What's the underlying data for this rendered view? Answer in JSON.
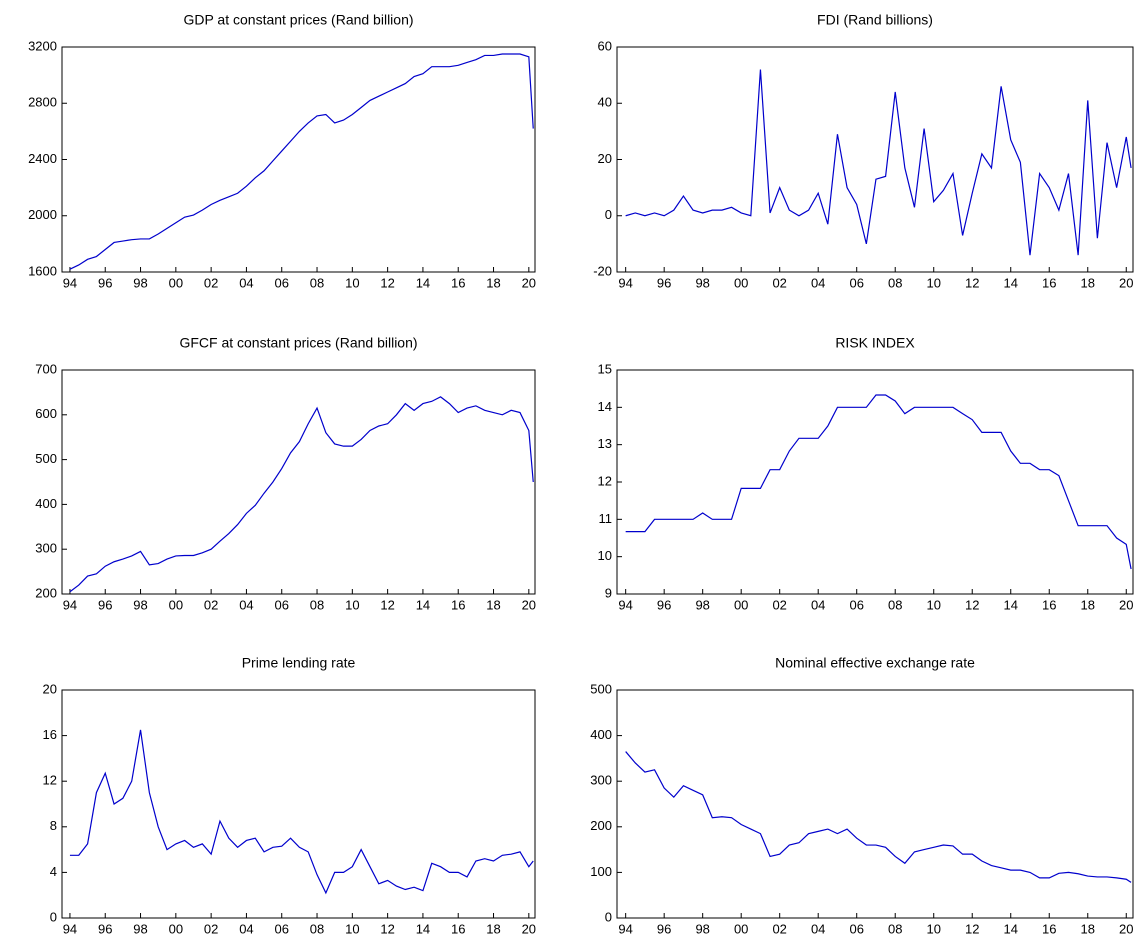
{
  "chart_data": [
    {
      "type": "line",
      "title": "GDP at constant prices (Rand billion)",
      "x": [
        1994,
        1994.5,
        1995,
        1995.5,
        1996,
        1996.5,
        1997,
        1997.5,
        1998,
        1998.5,
        1999,
        1999.5,
        2000,
        2000.5,
        2001,
        2001.5,
        2002,
        2002.5,
        2003,
        2003.5,
        2004,
        2004.5,
        2005,
        2005.5,
        2006,
        2006.5,
        2007,
        2007.5,
        2008,
        2008.5,
        2009,
        2009.5,
        2010,
        2010.5,
        2011,
        2011.5,
        2012,
        2012.5,
        2013,
        2013.5,
        2014,
        2014.5,
        2015,
        2015.5,
        2016,
        2016.5,
        2017,
        2017.5,
        2018,
        2018.5,
        2019,
        2019.5,
        2020,
        2020.25
      ],
      "values": [
        1620,
        1650,
        1690,
        1710,
        1760,
        1810,
        1820,
        1830,
        1835,
        1835,
        1870,
        1910,
        1950,
        1990,
        2005,
        2040,
        2080,
        2110,
        2135,
        2160,
        2210,
        2270,
        2320,
        2390,
        2460,
        2530,
        2600,
        2660,
        2710,
        2720,
        2660,
        2680,
        2720,
        2770,
        2820,
        2850,
        2880,
        2910,
        2940,
        2990,
        3010,
        3060,
        3060,
        3060,
        3070,
        3090,
        3110,
        3140,
        3140,
        3150,
        3150,
        3150,
        3130,
        2620
      ],
      "color": "#0000cc",
      "xlim": [
        1993.55,
        2020.35
      ],
      "ylim": [
        1600,
        3200
      ],
      "yticks": [
        1600,
        2000,
        2400,
        2800,
        3200
      ],
      "xticks": [
        {
          "value": 1994,
          "label": "94"
        },
        {
          "value": 1996,
          "label": "96"
        },
        {
          "value": 1998,
          "label": "98"
        },
        {
          "value": 2000,
          "label": "00"
        },
        {
          "value": 2002,
          "label": "02"
        },
        {
          "value": 2004,
          "label": "04"
        },
        {
          "value": 2006,
          "label": "06"
        },
        {
          "value": 2008,
          "label": "08"
        },
        {
          "value": 2010,
          "label": "10"
        },
        {
          "value": 2012,
          "label": "12"
        },
        {
          "value": 2014,
          "label": "14"
        },
        {
          "value": 2016,
          "label": "16"
        },
        {
          "value": 2018,
          "label": "18"
        },
        {
          "value": 2020,
          "label": "20"
        }
      ]
    },
    {
      "type": "line",
      "title": "FDI (Rand billions)",
      "x": [
        1994,
        1994.5,
        1995,
        1995.5,
        1996,
        1996.5,
        1997,
        1997.5,
        1998,
        1998.5,
        1999,
        1999.5,
        2000,
        2000.5,
        2001,
        2001.5,
        2002,
        2002.5,
        2003,
        2003.5,
        2004,
        2004.5,
        2005,
        2005.5,
        2006,
        2006.5,
        2007,
        2007.5,
        2008,
        2008.5,
        2009,
        2009.5,
        2010,
        2010.5,
        2011,
        2011.5,
        2012,
        2012.5,
        2013,
        2013.5,
        2014,
        2014.5,
        2015,
        2015.5,
        2016,
        2016.5,
        2017,
        2017.5,
        2018,
        2018.5,
        2019,
        2019.5,
        2020,
        2020.25
      ],
      "values": [
        0,
        1,
        0,
        1,
        0,
        2,
        7,
        2,
        1,
        2,
        2,
        3,
        1,
        0,
        52,
        1,
        10,
        2,
        0,
        2,
        8,
        -3,
        29,
        10,
        4,
        -10,
        13,
        14,
        44,
        17,
        3,
        31,
        5,
        9,
        15,
        -7,
        8,
        22,
        17,
        46,
        27,
        19,
        -14,
        15,
        10,
        2,
        15,
        -14,
        41,
        -8,
        26,
        10,
        28,
        17
      ],
      "color": "#0000cc",
      "xlim": [
        1993.55,
        2020.35
      ],
      "ylim": [
        -20,
        60
      ],
      "yticks": [
        -20,
        0,
        20,
        40,
        60
      ],
      "xticks": [
        {
          "value": 1994,
          "label": "94"
        },
        {
          "value": 1996,
          "label": "96"
        },
        {
          "value": 1998,
          "label": "98"
        },
        {
          "value": 2000,
          "label": "00"
        },
        {
          "value": 2002,
          "label": "02"
        },
        {
          "value": 2004,
          "label": "04"
        },
        {
          "value": 2006,
          "label": "06"
        },
        {
          "value": 2008,
          "label": "08"
        },
        {
          "value": 2010,
          "label": "10"
        },
        {
          "value": 2012,
          "label": "12"
        },
        {
          "value": 2014,
          "label": "14"
        },
        {
          "value": 2016,
          "label": "16"
        },
        {
          "value": 2018,
          "label": "18"
        },
        {
          "value": 2020,
          "label": "20"
        }
      ]
    },
    {
      "type": "line",
      "title": "GFCF at constant prices (Rand billion)",
      "x": [
        1994,
        1994.5,
        1995,
        1995.5,
        1996,
        1996.5,
        1997,
        1997.5,
        1998,
        1998.5,
        1999,
        1999.5,
        2000,
        2000.5,
        2001,
        2001.5,
        2002,
        2002.5,
        2003,
        2003.5,
        2004,
        2004.5,
        2005,
        2005.5,
        2006,
        2006.5,
        2007,
        2007.5,
        2008,
        2008.5,
        2009,
        2009.5,
        2010,
        2010.5,
        2011,
        2011.5,
        2012,
        2012.5,
        2013,
        2013.5,
        2014,
        2014.5,
        2015,
        2015.5,
        2016,
        2016.5,
        2017,
        2017.5,
        2018,
        2018.5,
        2019,
        2019.5,
        2020,
        2020.25
      ],
      "values": [
        205,
        220,
        240,
        245,
        262,
        272,
        278,
        285,
        295,
        265,
        268,
        278,
        285,
        286,
        286,
        292,
        300,
        318,
        335,
        355,
        380,
        398,
        425,
        450,
        480,
        515,
        540,
        580,
        615,
        560,
        535,
        530,
        530,
        545,
        565,
        575,
        580,
        600,
        625,
        610,
        625,
        630,
        640,
        625,
        605,
        615,
        620,
        610,
        605,
        600,
        610,
        605,
        565,
        450
      ],
      "color": "#0000cc",
      "xlim": [
        1993.55,
        2020.35
      ],
      "ylim": [
        200,
        700
      ],
      "yticks": [
        200,
        300,
        400,
        500,
        600,
        700
      ],
      "xticks": [
        {
          "value": 1994,
          "label": "94"
        },
        {
          "value": 1996,
          "label": "96"
        },
        {
          "value": 1998,
          "label": "98"
        },
        {
          "value": 2000,
          "label": "00"
        },
        {
          "value": 2002,
          "label": "02"
        },
        {
          "value": 2004,
          "label": "04"
        },
        {
          "value": 2006,
          "label": "06"
        },
        {
          "value": 2008,
          "label": "08"
        },
        {
          "value": 2010,
          "label": "10"
        },
        {
          "value": 2012,
          "label": "12"
        },
        {
          "value": 2014,
          "label": "14"
        },
        {
          "value": 2016,
          "label": "16"
        },
        {
          "value": 2018,
          "label": "18"
        },
        {
          "value": 2020,
          "label": "20"
        }
      ]
    },
    {
      "type": "line",
      "title": "RISK INDEX",
      "x": [
        1994,
        1994.5,
        1995,
        1995.5,
        1996,
        1996.5,
        1997,
        1997.5,
        1998,
        1998.5,
        1999,
        1999.5,
        2000,
        2000.5,
        2001,
        2001.5,
        2002,
        2002.5,
        2003,
        2003.5,
        2004,
        2004.5,
        2005,
        2005.5,
        2006,
        2006.5,
        2007,
        2007.5,
        2008,
        2008.5,
        2009,
        2009.5,
        2010,
        2010.5,
        2011,
        2011.5,
        2012,
        2012.5,
        2013,
        2013.5,
        2014,
        2014.5,
        2015,
        2015.5,
        2016,
        2016.5,
        2017,
        2017.5,
        2018,
        2018.5,
        2019,
        2019.5,
        2020,
        2020.25
      ],
      "values": [
        10.67,
        10.67,
        10.67,
        11,
        11,
        11,
        11,
        11,
        11.17,
        11,
        11,
        11,
        11.83,
        11.83,
        11.83,
        12.33,
        12.33,
        12.83,
        13.17,
        13.17,
        13.17,
        13.5,
        14,
        14,
        14,
        14,
        14.33,
        14.33,
        14.17,
        13.83,
        14,
        14,
        14,
        14,
        14,
        13.83,
        13.67,
        13.33,
        13.33,
        13.33,
        12.83,
        12.5,
        12.5,
        12.33,
        12.33,
        12.17,
        11.5,
        10.83,
        10.83,
        10.83,
        10.83,
        10.5,
        10.33,
        9.67
      ],
      "color": "#0000cc",
      "xlim": [
        1993.55,
        2020.35
      ],
      "ylim": [
        9,
        15
      ],
      "yticks": [
        9,
        10,
        11,
        12,
        13,
        14,
        15
      ],
      "xticks": [
        {
          "value": 1994,
          "label": "94"
        },
        {
          "value": 1996,
          "label": "96"
        },
        {
          "value": 1998,
          "label": "98"
        },
        {
          "value": 2000,
          "label": "00"
        },
        {
          "value": 2002,
          "label": "02"
        },
        {
          "value": 2004,
          "label": "04"
        },
        {
          "value": 2006,
          "label": "06"
        },
        {
          "value": 2008,
          "label": "08"
        },
        {
          "value": 2010,
          "label": "10"
        },
        {
          "value": 2012,
          "label": "12"
        },
        {
          "value": 2014,
          "label": "14"
        },
        {
          "value": 2016,
          "label": "16"
        },
        {
          "value": 2018,
          "label": "18"
        },
        {
          "value": 2020,
          "label": "20"
        }
      ]
    },
    {
      "type": "line",
      "title": "Prime lending rate",
      "x": [
        1994,
        1994.5,
        1995,
        1995.5,
        1996,
        1996.5,
        1997,
        1997.5,
        1998,
        1998.5,
        1999,
        1999.5,
        2000,
        2000.5,
        2001,
        2001.5,
        2002,
        2002.5,
        2003,
        2003.5,
        2004,
        2004.5,
        2005,
        2005.5,
        2006,
        2006.5,
        2007,
        2007.5,
        2008,
        2008.5,
        2009,
        2009.5,
        2010,
        2010.5,
        2011,
        2011.5,
        2012,
        2012.5,
        2013,
        2013.5,
        2014,
        2014.5,
        2015,
        2015.5,
        2016,
        2016.5,
        2017,
        2017.5,
        2018,
        2018.5,
        2019,
        2019.5,
        2020,
        2020.25
      ],
      "values": [
        5.5,
        5.5,
        6.5,
        11,
        12.7,
        10,
        10.5,
        12,
        16.5,
        11,
        8,
        6,
        6.5,
        6.8,
        6.2,
        6.5,
        5.6,
        8.5,
        7,
        6.2,
        6.8,
        7,
        5.8,
        6.2,
        6.3,
        7,
        6.2,
        5.8,
        3.8,
        2.2,
        4,
        4,
        4.5,
        6,
        4.5,
        3,
        3.3,
        2.8,
        2.5,
        2.7,
        2.4,
        4.8,
        4.5,
        4,
        4,
        3.6,
        5,
        5.2,
        5,
        5.5,
        5.6,
        5.8,
        4.5,
        5
      ],
      "color": "#0000cc",
      "xlim": [
        1993.55,
        2020.35
      ],
      "ylim": [
        0,
        20
      ],
      "yticks": [
        0,
        4,
        8,
        12,
        16,
        20
      ],
      "xticks": [
        {
          "value": 1994,
          "label": "94"
        },
        {
          "value": 1996,
          "label": "96"
        },
        {
          "value": 1998,
          "label": "98"
        },
        {
          "value": 2000,
          "label": "00"
        },
        {
          "value": 2002,
          "label": "02"
        },
        {
          "value": 2004,
          "label": "04"
        },
        {
          "value": 2006,
          "label": "06"
        },
        {
          "value": 2008,
          "label": "08"
        },
        {
          "value": 2010,
          "label": "10"
        },
        {
          "value": 2012,
          "label": "12"
        },
        {
          "value": 2014,
          "label": "14"
        },
        {
          "value": 2016,
          "label": "16"
        },
        {
          "value": 2018,
          "label": "18"
        },
        {
          "value": 2020,
          "label": "20"
        }
      ]
    },
    {
      "type": "line",
      "title": "Nominal effective exchange rate",
      "x": [
        1994,
        1994.5,
        1995,
        1995.5,
        1996,
        1996.5,
        1997,
        1997.5,
        1998,
        1998.5,
        1999,
        1999.5,
        2000,
        2000.5,
        2001,
        2001.5,
        2002,
        2002.5,
        2003,
        2003.5,
        2004,
        2004.5,
        2005,
        2005.5,
        2006,
        2006.5,
        2007,
        2007.5,
        2008,
        2008.5,
        2009,
        2009.5,
        2010,
        2010.5,
        2011,
        2011.5,
        2012,
        2012.5,
        2013,
        2013.5,
        2014,
        2014.5,
        2015,
        2015.5,
        2016,
        2016.5,
        2017,
        2017.5,
        2018,
        2018.5,
        2019,
        2019.5,
        2020,
        2020.25
      ],
      "values": [
        365,
        340,
        320,
        325,
        285,
        265,
        290,
        280,
        270,
        220,
        222,
        220,
        205,
        195,
        185,
        135,
        140,
        160,
        165,
        185,
        190,
        195,
        185,
        195,
        175,
        160,
        160,
        155,
        135,
        120,
        145,
        150,
        155,
        160,
        158,
        140,
        140,
        125,
        115,
        110,
        105,
        105,
        100,
        88,
        88,
        98,
        100,
        97,
        92,
        90,
        90,
        88,
        85,
        78
      ],
      "color": "#0000cc",
      "xlim": [
        1993.55,
        2020.35
      ],
      "ylim": [
        0,
        500
      ],
      "yticks": [
        0,
        100,
        200,
        300,
        400,
        500
      ],
      "xticks": [
        {
          "value": 1994,
          "label": "94"
        },
        {
          "value": 1996,
          "label": "96"
        },
        {
          "value": 1998,
          "label": "98"
        },
        {
          "value": 2000,
          "label": "00"
        },
        {
          "value": 2002,
          "label": "02"
        },
        {
          "value": 2004,
          "label": "04"
        },
        {
          "value": 2006,
          "label": "06"
        },
        {
          "value": 2008,
          "label": "08"
        },
        {
          "value": 2010,
          "label": "10"
        },
        {
          "value": 2012,
          "label": "12"
        },
        {
          "value": 2014,
          "label": "14"
        },
        {
          "value": 2016,
          "label": "16"
        },
        {
          "value": 2018,
          "label": "18"
        },
        {
          "value": 2020,
          "label": "20"
        }
      ]
    }
  ]
}
